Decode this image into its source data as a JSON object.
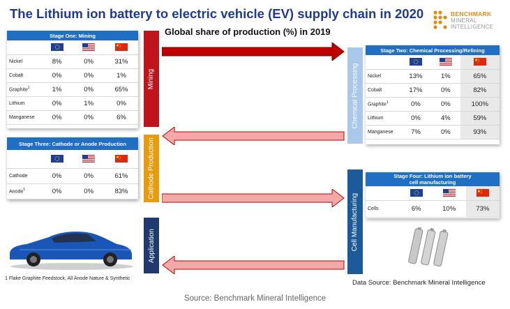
{
  "title": "The Lithium ion battery to electric vehicle (EV) supply chain in 2020",
  "subtitle": "Global share of production (%) in 2019",
  "logo": {
    "line1": "BENCHMARK",
    "line2": "MINERAL",
    "line3": "INTELLIGENCE"
  },
  "colors": {
    "header_blue": "#1f6fc5",
    "mining": "#c0141c",
    "chemical": "#a9c8ea",
    "cathode": "#e79b0d",
    "cell": "#1d5a9a",
    "application": "#1f3b6e",
    "arrow_dark": "#c00000",
    "arrow_light": "#f4a9a9"
  },
  "columns": [
    "EU",
    "US",
    "China"
  ],
  "stage_bars": {
    "mining": "Mining",
    "chemical": "Chemical Processing",
    "cathode": "Cathode Production",
    "cell": "Cell Manufacturing",
    "application": "Application"
  },
  "stage1": {
    "header": "Stage One: Mining",
    "rows": [
      {
        "label": "Nickel",
        "sup": "",
        "values": [
          "8%",
          "0%",
          "31%"
        ]
      },
      {
        "label": "Cobalt",
        "sup": "",
        "values": [
          "0%",
          "0%",
          "1%"
        ]
      },
      {
        "label": "Graphite",
        "sup": "1",
        "values": [
          "1%",
          "0%",
          "65%"
        ]
      },
      {
        "label": "Lithium",
        "sup": "",
        "values": [
          "0%",
          "1%",
          "0%"
        ]
      },
      {
        "label": "Manganese",
        "sup": "",
        "values": [
          "0%",
          "0%",
          "6%"
        ]
      }
    ]
  },
  "stage2": {
    "header": "Stage Two: Chemical Processing/Refining",
    "rows": [
      {
        "label": "Nickel",
        "sup": "",
        "values": [
          "13%",
          "1%",
          "65%"
        ]
      },
      {
        "label": "Cobalt",
        "sup": "",
        "values": [
          "17%",
          "0%",
          "82%"
        ]
      },
      {
        "label": "Graphite",
        "sup": "1",
        "values": [
          "0%",
          "0%",
          "100%"
        ]
      },
      {
        "label": "Lithium",
        "sup": "",
        "values": [
          "0%",
          "4%",
          "59%"
        ]
      },
      {
        "label": "Manganese",
        "sup": "",
        "values": [
          "7%",
          "0%",
          "93%"
        ]
      }
    ]
  },
  "stage3": {
    "header": "Stage Three: Cathode or Anode Production",
    "rows": [
      {
        "label": "Cathode",
        "sup": "",
        "values": [
          "0%",
          "0%",
          "61%"
        ]
      },
      {
        "label": "Anode",
        "sup": "1",
        "values": [
          "0%",
          "0%",
          "83%"
        ]
      }
    ]
  },
  "stage4": {
    "header_line1": "Stage Four: Lithium ion battery",
    "header_line2": "cell manufacturing",
    "rows": [
      {
        "label": "Cells",
        "sup": "",
        "values": [
          "6%",
          "10%",
          "73%"
        ]
      }
    ]
  },
  "footnote": "1 Flake Graphite Feedstock, All Anode Nature & Synthetic",
  "data_source": "Data Source: Benchmark Mineral Intelligence",
  "source": "Source: Benchmark Mineral Intelligence"
}
